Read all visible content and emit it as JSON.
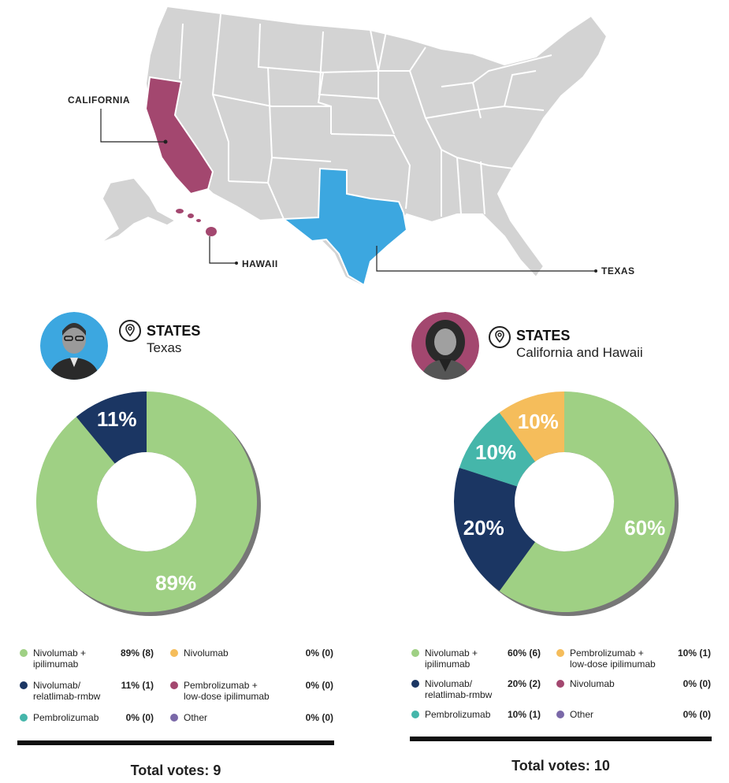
{
  "map": {
    "labels": {
      "california": "CALIFORNIA",
      "hawaii": "HAWAII",
      "texas": "TEXAS"
    },
    "colors": {
      "base": "#d3d3d3",
      "california": "#a3476f",
      "hawaii": "#a3476f",
      "texas": "#3ca7e0"
    }
  },
  "panels": [
    {
      "states_heading": "STATES",
      "states_value": "Texas",
      "avatar_color": "#3ca7e0",
      "total_votes": "Total votes: 9",
      "legend": [
        {
          "label": "Nivolumab +\nipilimumab",
          "value": "89% (8)",
          "color": "#9fd084"
        },
        {
          "label": "Nivolumab/\nrelatlimab-rmbw",
          "value": "11% (1)",
          "color": "#1b3663"
        },
        {
          "label": "Pembrolizumab",
          "value": "0% (0)",
          "color": "#45b6aa"
        },
        {
          "label": "Nivolumab",
          "value": "0% (0)",
          "color": "#f5bd5b"
        },
        {
          "label": "Pembrolizumab +\nlow-dose ipilimumab",
          "value": "0% (0)",
          "color": "#a3476f"
        },
        {
          "label": "Other",
          "value": "0% (0)",
          "color": "#7a68a8"
        }
      ]
    },
    {
      "states_heading": "STATES",
      "states_value": "California and Hawaii",
      "avatar_color": "#a3476f",
      "total_votes": "Total votes: 10",
      "legend": [
        {
          "label": "Nivolumab +\nipilimumab",
          "value": "60% (6)",
          "color": "#9fd084"
        },
        {
          "label": "Nivolumab/\nrelatlimab-rmbw",
          "value": "20% (2)",
          "color": "#1b3663"
        },
        {
          "label": "Pembrolizumab",
          "value": "10% (1)",
          "color": "#45b6aa"
        },
        {
          "label": "Pembrolizumab +\nlow-dose ipilimumab",
          "value": "10% (1)",
          "color": "#f5bd5b"
        },
        {
          "label": "Nivolumab",
          "value": "0% (0)",
          "color": "#a3476f"
        },
        {
          "label": "Other",
          "value": "0% (0)",
          "color": "#7a68a8"
        }
      ]
    }
  ],
  "chart_data": [
    {
      "type": "pie",
      "title": "",
      "categories": [
        "Nivolumab + ipilimumab",
        "Nivolumab/relatlimab-rmbw"
      ],
      "values": [
        89,
        11
      ],
      "labels": [
        "89%",
        "11%"
      ],
      "colors": [
        "#9fd084",
        "#1b3663"
      ],
      "donut": true
    },
    {
      "type": "pie",
      "title": "",
      "categories": [
        "Nivolumab + ipilimumab",
        "Nivolumab/relatlimab-rmbw",
        "Pembrolizumab",
        "Pembrolizumab + low-dose ipilimumab"
      ],
      "values": [
        60,
        20,
        10,
        10
      ],
      "labels": [
        "60%",
        "20%",
        "10%",
        "10%"
      ],
      "colors": [
        "#9fd084",
        "#1b3663",
        "#45b6aa",
        "#f5bd5b"
      ],
      "donut": true
    }
  ]
}
